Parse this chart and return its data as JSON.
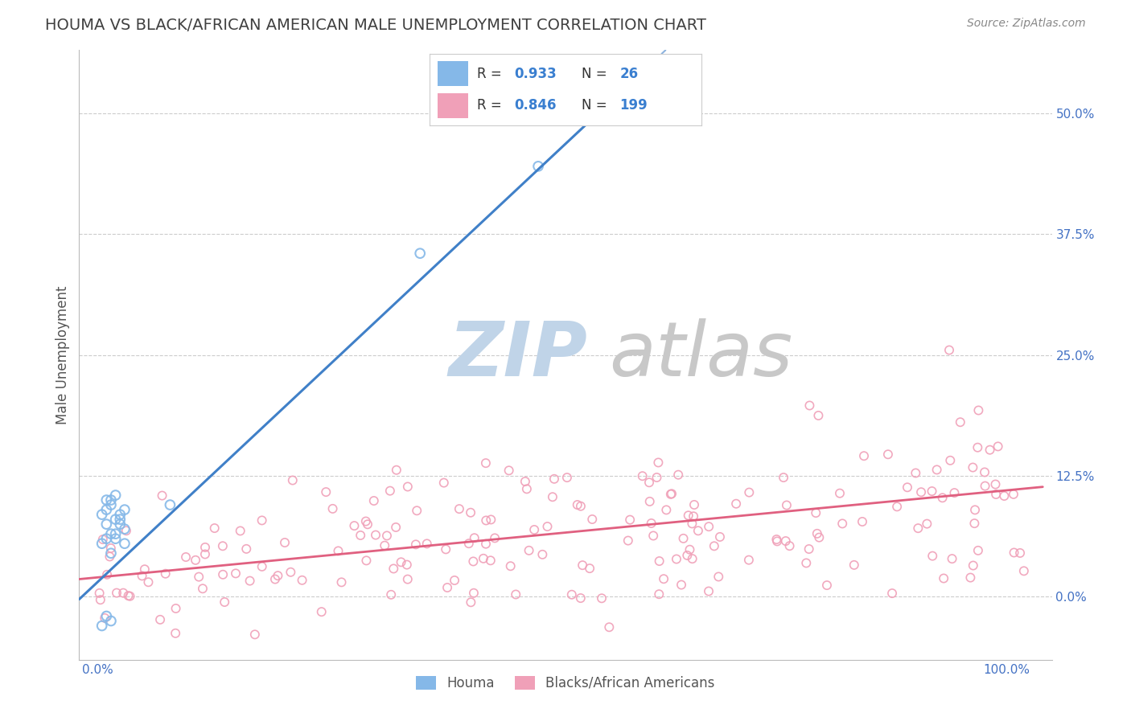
{
  "title": "HOUMA VS BLACK/AFRICAN AMERICAN MALE UNEMPLOYMENT CORRELATION CHART",
  "source": "Source: ZipAtlas.com",
  "ylabel": "Male Unemployment",
  "houma_color": "#85b8e8",
  "baa_color": "#f0a0b8",
  "houma_line_color": "#4080c8",
  "baa_line_color": "#e06080",
  "houma_R": 0.933,
  "houma_N": 26,
  "baa_R": 0.846,
  "baa_N": 199,
  "xlim": [
    -0.02,
    1.05
  ],
  "ylim": [
    -0.065,
    0.565
  ],
  "xticks_left": [
    0.0
  ],
  "xticks_right": [
    1.0
  ],
  "xticklabels_left": [
    "0.0%"
  ],
  "xticklabels_right": [
    "100.0%"
  ],
  "yticks": [
    0.0,
    0.125,
    0.25,
    0.375,
    0.5
  ],
  "yticklabels": [
    "0.0%",
    "12.5%",
    "25.0%",
    "37.5%",
    "50.0%"
  ],
  "background_color": "#ffffff",
  "grid_color": "#cccccc",
  "title_color": "#404040",
  "tick_color": "#4472c4",
  "legend_box_color": "#f8f8f8",
  "watermark_zip_color": "#c0d4e8",
  "watermark_atlas_color": "#c8c8c8"
}
